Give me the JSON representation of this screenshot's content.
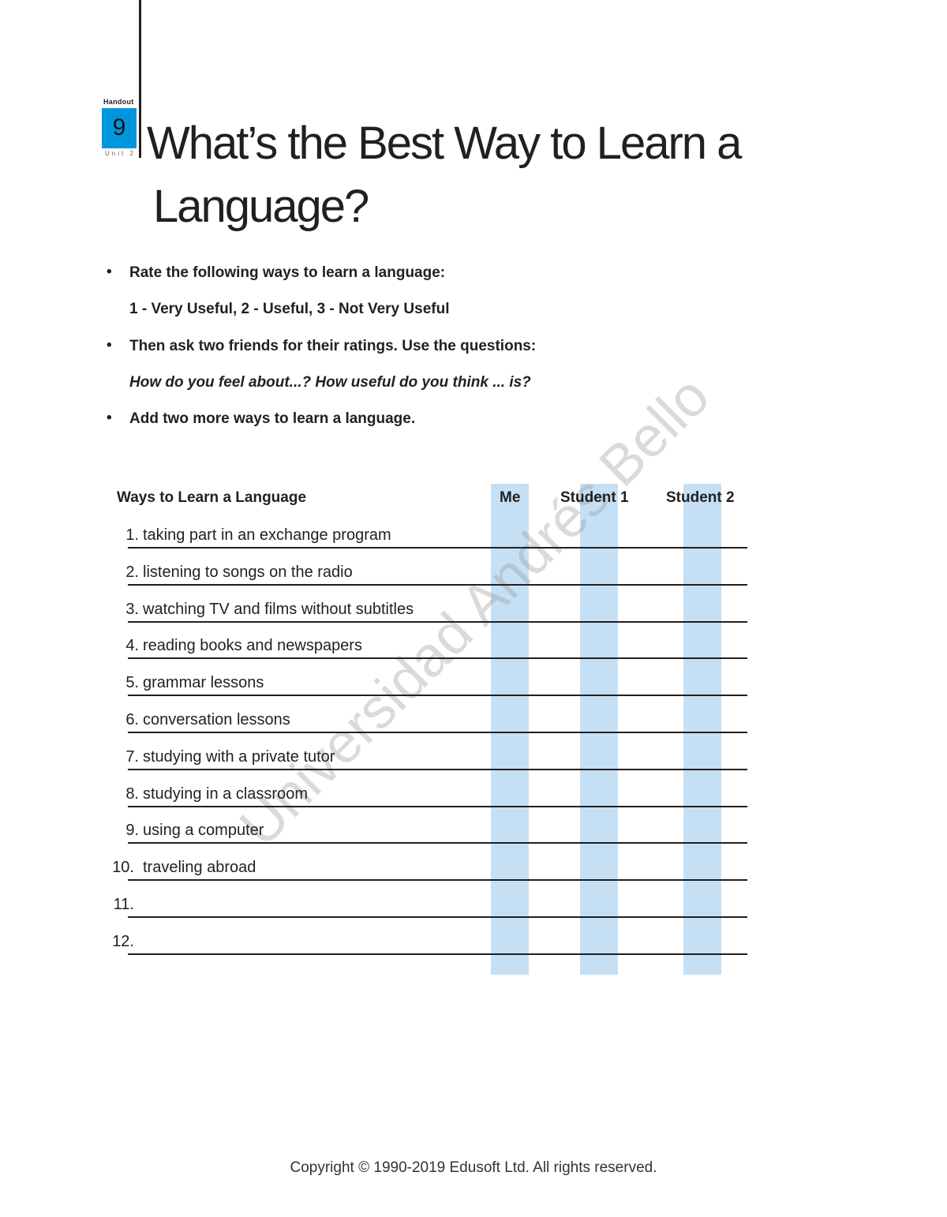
{
  "header": {
    "handout_label": "Handout",
    "handout_number": "9",
    "unit_label": "Unit 2",
    "title_line1": "What’s the Best Way to Learn a",
    "title_line2": "Language?",
    "accent_color": "#0096dc"
  },
  "instructions": [
    {
      "bullet": "•",
      "text": "Rate the following ways to learn a language:"
    },
    {
      "bullet": "",
      "text": "1 - Very Useful, 2 - Useful, 3 - Not Very Useful"
    },
    {
      "bullet": "•",
      "text": "Then ask two friends for their ratings. Use the questions:"
    },
    {
      "bullet": "",
      "text": "How do you feel about...? How useful do you think ... is?"
    },
    {
      "bullet": "•",
      "text": "Add two more ways to learn a language."
    }
  ],
  "table": {
    "headers": [
      "Ways to Learn a Language",
      "Me",
      "Student 1",
      "Student 2"
    ],
    "column_color": "#c5e0f4",
    "rows": [
      {
        "num": "1.",
        "label": "taking part in an exchange program"
      },
      {
        "num": "2.",
        "label": "listening to songs on the radio"
      },
      {
        "num": "3.",
        "label": "watching TV and films without subtitles"
      },
      {
        "num": "4.",
        "label": "reading books and newspapers"
      },
      {
        "num": "5.",
        "label": "grammar lessons"
      },
      {
        "num": "6.",
        "label": "conversation lessons"
      },
      {
        "num": "7.",
        "label": "studying with a private tutor"
      },
      {
        "num": "8.",
        "label": "studying in a classroom"
      },
      {
        "num": "9.",
        "label": "using a computer"
      },
      {
        "num": "10.",
        "label": "traveling abroad"
      },
      {
        "num": "11.",
        "label": ""
      },
      {
        "num": "12.",
        "label": ""
      }
    ]
  },
  "watermark": "Universidad Andrés Bello",
  "footer": {
    "copyright": "Copyright © 1990-2019 Edusoft Ltd. All rights reserved."
  }
}
